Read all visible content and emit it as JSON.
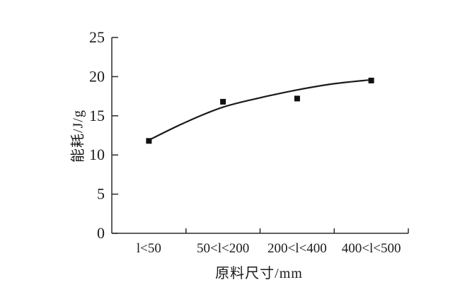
{
  "figure": {
    "background": "#ffffff",
    "ink_color": "#1a1a1a"
  },
  "chart_data": {
    "type": "scatter",
    "title": "",
    "xlabel": "原料尺寸/mm",
    "ylabel": "能耗/J/g",
    "categories": [
      "l<50",
      "50<l<200",
      "200<l<400",
      "400<l<500"
    ],
    "series": [
      {
        "name": "能耗",
        "marker": "filled-square",
        "values": [
          11.8,
          16.8,
          17.2,
          19.5
        ]
      }
    ],
    "trend_line": {
      "style": "smooth-fit-curve",
      "x_category_positions": [
        0,
        0.5,
        1,
        1.5,
        2,
        2.5,
        3
      ],
      "y_values": [
        11.9,
        14.2,
        16.1,
        17.3,
        18.3,
        19.1,
        19.6
      ]
    },
    "y_ticks": [
      0,
      5,
      10,
      15,
      20,
      25
    ],
    "ylim": [
      0,
      25
    ],
    "grid": false,
    "legend": false,
    "colors": {
      "marker": "#111111",
      "curve": "#1b1b1b",
      "axis": "#2a2a2a",
      "text": "#1a1a1a"
    }
  }
}
